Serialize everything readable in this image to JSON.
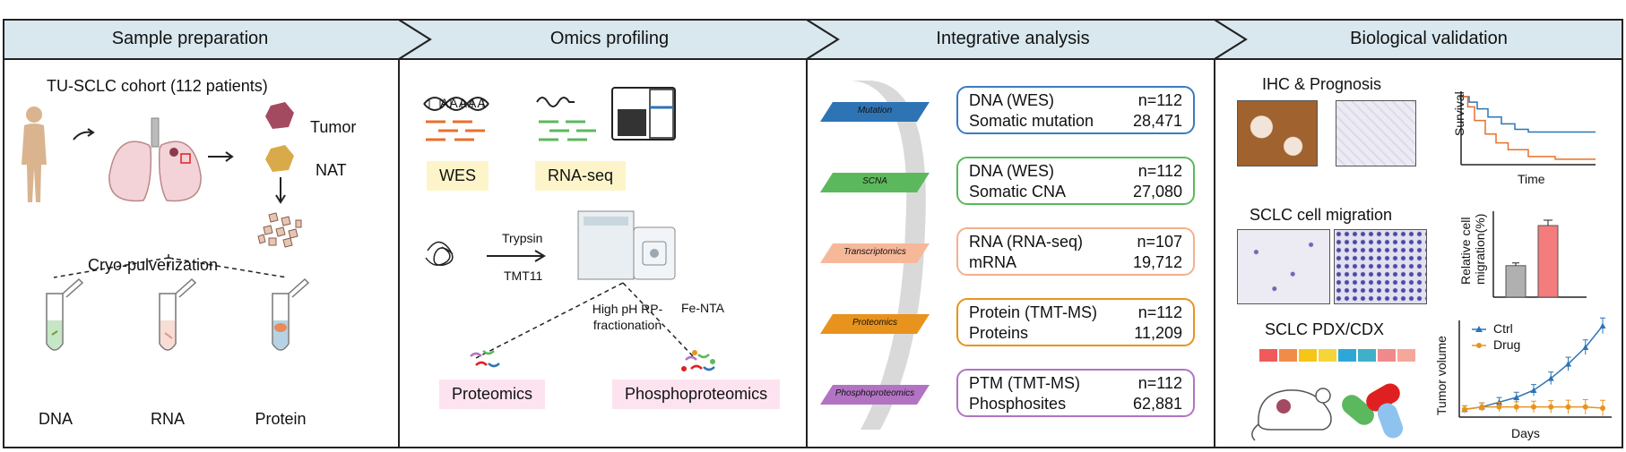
{
  "steps": [
    {
      "label": "Sample preparation"
    },
    {
      "label": "Omics profiling"
    },
    {
      "label": "Integrative analysis"
    },
    {
      "label": "Biological validation"
    }
  ],
  "sample": {
    "cohort": "TU-SCLC cohort (112 patients)",
    "tumor": "Tumor",
    "nat": "NAT",
    "cryo": "Cryo-pulverization",
    "tubes": [
      "DNA",
      "RNA",
      "Protein"
    ]
  },
  "omics": {
    "wes": "WES",
    "rnaseq": "RNA-seq",
    "polya": "AAAAA",
    "trypsin": "Trypsin",
    "tmt": "TMT11",
    "fraction": "High pH RP-fractionation",
    "fenta": "Fe-NTA",
    "proteomics": "Proteomics",
    "phospho": "Phosphoproteomics"
  },
  "integrative": {
    "layers": [
      {
        "tag": "Mutation",
        "line1": "DNA (WES)",
        "n": "n=112",
        "line2": "Somatic mutation",
        "count": "28,471",
        "color": "#2e74b5",
        "border": "#3b7bbf"
      },
      {
        "tag": "SCNA",
        "line1": "DNA (WES)",
        "n": "n=112",
        "line2": "Somatic CNA",
        "count": "27,080",
        "color": "#5cb85c",
        "border": "#5cb85c"
      },
      {
        "tag": "Transcriptomics",
        "line1": "RNA (RNA-seq)",
        "n": "n=107",
        "line2": "mRNA",
        "count": "19,712",
        "color": "#f7b89a",
        "border": "#f4b08e"
      },
      {
        "tag": "Proteomics",
        "line1": "Protein (TMT-MS)",
        "n": "n=112",
        "line2": "Proteins",
        "count": "11,209",
        "color": "#e8931d",
        "border": "#e8931d"
      },
      {
        "tag": "Phosphoproteomics",
        "line1": "PTM (TMT-MS)",
        "n": "n=112",
        "line2": "Phosphosites",
        "count": "62,881",
        "color": "#b274c2",
        "border": "#b274c2"
      }
    ]
  },
  "validation": {
    "ihc_title": "IHC & Prognosis",
    "survival_y": "Survival",
    "survival_x": "Time",
    "migration_title": "SCLC cell migration",
    "migration_y": "Relative cell migration(%)",
    "migration_values": [
      0.44,
      1.0
    ],
    "pdx_title": "SCLC PDX/CDX",
    "tumor_y": "Tumor volume",
    "tumor_x": "Days",
    "legend": [
      {
        "name": "Ctrl",
        "color": "#2e74b5"
      },
      {
        "name": "Drug",
        "color": "#e8931d"
      }
    ],
    "ctrl_values": [
      1,
      2,
      4,
      6,
      9,
      14,
      20,
      27,
      36
    ],
    "drug_values": [
      1,
      2,
      2,
      2,
      2,
      2,
      2,
      2,
      1.5
    ],
    "survival_blue": [
      [
        0,
        1
      ],
      [
        0.06,
        0.92
      ],
      [
        0.12,
        0.82
      ],
      [
        0.2,
        0.7
      ],
      [
        0.3,
        0.6
      ],
      [
        0.4,
        0.52
      ],
      [
        0.5,
        0.48
      ],
      [
        1,
        0.48
      ]
    ],
    "survival_orange": [
      [
        0,
        1
      ],
      [
        0.05,
        0.85
      ],
      [
        0.1,
        0.65
      ],
      [
        0.18,
        0.45
      ],
      [
        0.26,
        0.32
      ],
      [
        0.35,
        0.22
      ],
      [
        0.5,
        0.12
      ],
      [
        0.7,
        0.08
      ],
      [
        1,
        0.08
      ]
    ],
    "swatches": [
      "#f05a5a",
      "#f08c4a",
      "#f5c518",
      "#f5d53a",
      "#2fa7d6",
      "#3fb0c8",
      "#f08a8a",
      "#f5a89a"
    ]
  }
}
